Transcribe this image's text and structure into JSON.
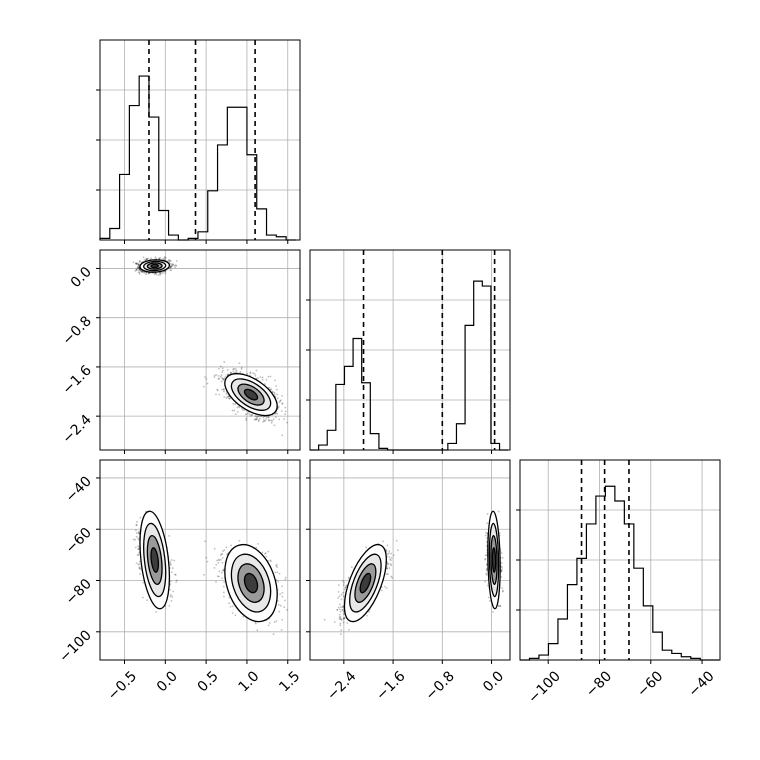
{
  "chart_data": {
    "type": "corner",
    "title": "",
    "parameters": [
      {
        "name": "",
        "range": [
          -0.8,
          1.65
        ],
        "ticks": [
          {
            "v": -0.5,
            "label": "−0.5"
          },
          {
            "v": 0.0,
            "label": "0.0"
          },
          {
            "v": 0.5,
            "label": "0.5"
          },
          {
            "v": 1.0,
            "label": "1.0"
          },
          {
            "v": 1.5,
            "label": "1.5"
          }
        ]
      },
      {
        "name": "",
        "range": [
          -2.95,
          0.3
        ],
        "ticks": [
          {
            "v": -2.4,
            "label": "−2.4"
          },
          {
            "v": -1.6,
            "label": "−1.6"
          },
          {
            "v": -0.8,
            "label": "−0.8"
          },
          {
            "v": 0.0,
            "label": "0.0"
          }
        ]
      },
      {
        "name": "",
        "range": [
          -111,
          -33
        ],
        "ticks": [
          {
            "v": -100,
            "label": "−100"
          },
          {
            "v": -80,
            "label": "−80"
          },
          {
            "v": -60,
            "label": "−60"
          },
          {
            "v": -40,
            "label": "−40"
          }
        ]
      }
    ],
    "histograms": [
      {
        "param": 0,
        "bin_start": -0.8,
        "bin_width": 0.12,
        "ymax": 1.22,
        "counts": [
          0.01,
          0.07,
          0.4,
          0.82,
          1.0,
          0.75,
          0.18,
          0.03,
          0.0,
          0.01,
          0.05,
          0.3,
          0.58,
          0.81,
          0.81,
          0.52,
          0.19,
          0.03,
          0.02,
          0.0
        ],
        "quantiles": [
          -0.2,
          0.37,
          1.1
        ]
      },
      {
        "param": 1,
        "bin_start": -2.95,
        "bin_width": 0.14,
        "ymax": 1.22,
        "counts": [
          0.0,
          0.03,
          0.12,
          0.4,
          0.51,
          0.68,
          0.41,
          0.1,
          0.01,
          0.0,
          0.0,
          0.0,
          0.0,
          0.0,
          0.0,
          0.0,
          0.04,
          0.16,
          0.76,
          1.03,
          1.0,
          0.04,
          0.0
        ],
        "quantiles": [
          -2.08,
          -0.8,
          0.05
        ]
      },
      {
        "param": 2,
        "bin_start": -111,
        "bin_width": 3.7,
        "ymax": 1.22,
        "counts": [
          0.0,
          0.01,
          0.03,
          0.1,
          0.25,
          0.46,
          0.62,
          0.83,
          1.0,
          1.06,
          0.97,
          0.83,
          0.56,
          0.33,
          0.17,
          0.06,
          0.04,
          0.02,
          0.01,
          0.0,
          0.0
        ],
        "quantiles": [
          -87,
          -78,
          -68.5
        ]
      }
    ],
    "clusters": [
      {
        "mx": -0.13,
        "my": 0.04,
        "mz": -72,
        "sx": 0.09,
        "sy": 0.05,
        "sz": 9.5,
        "cxy": 0.1,
        "cxz": -0.35,
        "cyz": -0.15,
        "weight": 0.5
      },
      {
        "mx": 1.05,
        "my": -2.05,
        "mz": -81,
        "sx": 0.16,
        "sy": 0.17,
        "sz": 7.5,
        "cxy": -0.55,
        "cxz": -0.3,
        "cyz": 0.6,
        "weight": 0.5
      }
    ],
    "grid": true,
    "quantile_style": "dashed"
  }
}
